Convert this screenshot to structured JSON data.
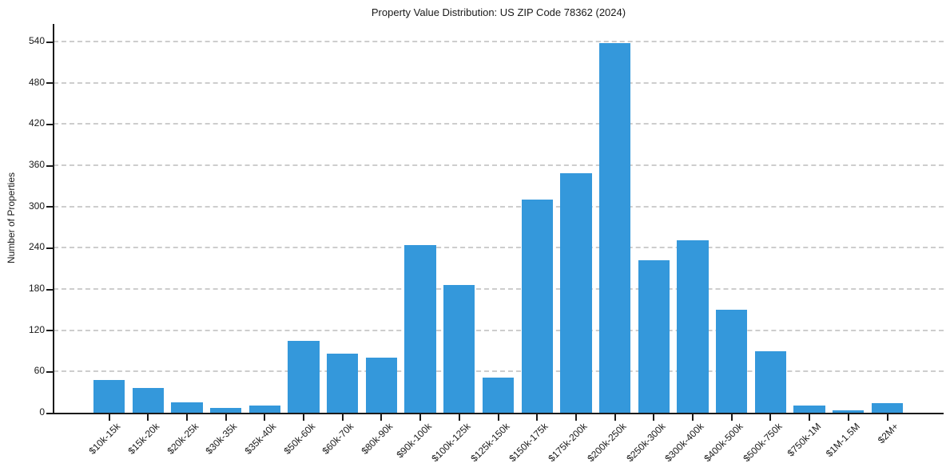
{
  "figure": {
    "title": "Property Value Distribution: US ZIP Code 78362 (2024)",
    "ylabel": "Number of Properties"
  },
  "chart_data": {
    "type": "bar",
    "title": "Property Value Distribution: US ZIP Code 78362 (2024)",
    "xlabel": "",
    "ylabel": "Number of Properties",
    "categories": [
      "$10k-15k",
      "$15k-20k",
      "$20k-25k",
      "$30k-35k",
      "$35k-40k",
      "$50k-60k",
      "$60k-70k",
      "$80k-90k",
      "$90k-100k",
      "$100k-125k",
      "$125k-150k",
      "$150k-175k",
      "$175k-200k",
      "$200k-250k",
      "$250k-300k",
      "$300k-400k",
      "$400k-500k",
      "$500k-750k",
      "$750k-1M",
      "$1M-1.5M",
      "$2M+"
    ],
    "values": [
      48,
      36,
      15,
      7,
      11,
      104,
      86,
      80,
      244,
      186,
      51,
      310,
      348,
      538,
      222,
      251,
      150,
      90,
      11,
      4,
      14
    ],
    "yticks": [
      0,
      60,
      120,
      180,
      240,
      300,
      360,
      420,
      480,
      540
    ],
    "ylim": [
      0,
      566
    ],
    "grid": "horizontal-dashed",
    "legend": "none",
    "colors": {
      "bar": "#3498db",
      "grid": "#cdcdcd",
      "axis": "#1a1a1a",
      "text": "#1a1a1a",
      "background": "#ffffff"
    }
  }
}
